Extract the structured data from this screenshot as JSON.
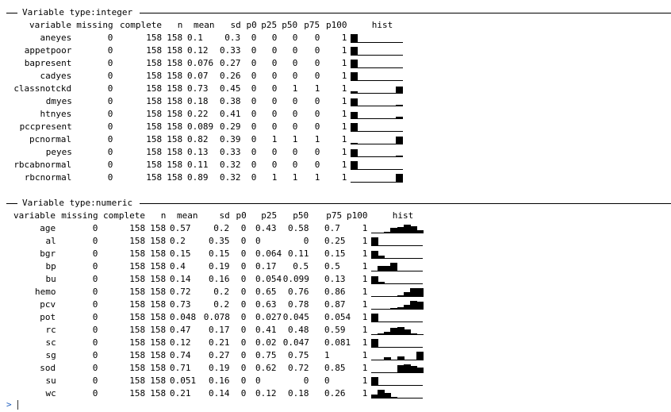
{
  "sections": [
    {
      "title": "Variable type:integer",
      "columns": [
        "variable",
        "missing",
        "complete",
        "n",
        "mean",
        "sd",
        "p0",
        "p25",
        "p50",
        "p75",
        "p100",
        "hist"
      ],
      "rows": [
        {
          "variable": "aneyes",
          "missing": "0",
          "complete": "158",
          "n": "158",
          "mean": "0.1",
          "sd": "0.3",
          "p0": "0",
          "p25": "0",
          "p50": "0",
          "p75": "0",
          "p100": "1",
          "hist": [
            0.9,
            0,
            0,
            0,
            0,
            0,
            0,
            0.1
          ]
        },
        {
          "variable": "appetpoor",
          "missing": "0",
          "complete": "158",
          "n": "158",
          "mean": "0.12",
          "sd": "0.33",
          "p0": "0",
          "p25": "0",
          "p50": "0",
          "p75": "0",
          "p100": "1",
          "hist": [
            0.88,
            0,
            0,
            0,
            0,
            0,
            0,
            0.12
          ]
        },
        {
          "variable": "bapresent",
          "missing": "0",
          "complete": "158",
          "n": "158",
          "mean": "0.076",
          "sd": "0.27",
          "p0": "0",
          "p25": "0",
          "p50": "0",
          "p75": "0",
          "p100": "1",
          "hist": [
            0.92,
            0,
            0,
            0,
            0,
            0,
            0,
            0.08
          ]
        },
        {
          "variable": "cadyes",
          "missing": "0",
          "complete": "158",
          "n": "158",
          "mean": "0.07",
          "sd": "0.26",
          "p0": "0",
          "p25": "0",
          "p50": "0",
          "p75": "0",
          "p100": "1",
          "hist": [
            0.93,
            0,
            0,
            0,
            0,
            0,
            0,
            0.07
          ]
        },
        {
          "variable": "classnotckd",
          "missing": "0",
          "complete": "158",
          "n": "158",
          "mean": "0.73",
          "sd": "0.45",
          "p0": "0",
          "p25": "0",
          "p50": "1",
          "p75": "1",
          "p100": "1",
          "hist": [
            0.27,
            0,
            0,
            0,
            0,
            0,
            0,
            0.73
          ]
        },
        {
          "variable": "dmyes",
          "missing": "0",
          "complete": "158",
          "n": "158",
          "mean": "0.18",
          "sd": "0.38",
          "p0": "0",
          "p25": "0",
          "p50": "0",
          "p75": "0",
          "p100": "1",
          "hist": [
            0.82,
            0,
            0,
            0,
            0,
            0,
            0,
            0.18
          ]
        },
        {
          "variable": "htnyes",
          "missing": "0",
          "complete": "158",
          "n": "158",
          "mean": "0.22",
          "sd": "0.41",
          "p0": "0",
          "p25": "0",
          "p50": "0",
          "p75": "0",
          "p100": "1",
          "hist": [
            0.78,
            0,
            0,
            0,
            0,
            0,
            0,
            0.22
          ]
        },
        {
          "variable": "pccpresent",
          "missing": "0",
          "complete": "158",
          "n": "158",
          "mean": "0.089",
          "sd": "0.29",
          "p0": "0",
          "p25": "0",
          "p50": "0",
          "p75": "0",
          "p100": "1",
          "hist": [
            0.91,
            0,
            0,
            0,
            0,
            0,
            0,
            0.09
          ]
        },
        {
          "variable": "pcnormal",
          "missing": "0",
          "complete": "158",
          "n": "158",
          "mean": "0.82",
          "sd": "0.39",
          "p0": "0",
          "p25": "1",
          "p50": "1",
          "p75": "1",
          "p100": "1",
          "hist": [
            0.18,
            0,
            0,
            0,
            0,
            0,
            0,
            0.82
          ]
        },
        {
          "variable": "peyes",
          "missing": "0",
          "complete": "158",
          "n": "158",
          "mean": "0.13",
          "sd": "0.33",
          "p0": "0",
          "p25": "0",
          "p50": "0",
          "p75": "0",
          "p100": "1",
          "hist": [
            0.87,
            0,
            0,
            0,
            0,
            0,
            0,
            0.13
          ]
        },
        {
          "variable": "rbcabnormal",
          "missing": "0",
          "complete": "158",
          "n": "158",
          "mean": "0.11",
          "sd": "0.32",
          "p0": "0",
          "p25": "0",
          "p50": "0",
          "p75": "0",
          "p100": "1",
          "hist": [
            0.89,
            0,
            0,
            0,
            0,
            0,
            0,
            0.11
          ]
        },
        {
          "variable": "rbcnormal",
          "missing": "0",
          "complete": "158",
          "n": "158",
          "mean": "0.89",
          "sd": "0.32",
          "p0": "0",
          "p25": "1",
          "p50": "1",
          "p75": "1",
          "p100": "1",
          "hist": [
            0.11,
            0,
            0,
            0,
            0,
            0,
            0,
            0.89
          ]
        }
      ]
    },
    {
      "title": "Variable type:numeric",
      "columns": [
        "variable",
        "missing",
        "complete",
        "n",
        "mean",
        "sd",
        "p0",
        "p25",
        "p50",
        "p75",
        "p100",
        "hist"
      ],
      "rows": [
        {
          "variable": "age",
          "missing": "0",
          "complete": "158",
          "n": "158",
          "mean": "0.57",
          "sd": "0.2",
          "p0": "0",
          "p25": "0.43",
          "p50": "0.58",
          "p75": "0.7",
          "p100": "1",
          "hist": [
            0.05,
            0.1,
            0.2,
            0.55,
            0.7,
            0.9,
            0.75,
            0.3
          ]
        },
        {
          "variable": "al",
          "missing": "0",
          "complete": "158",
          "n": "158",
          "mean": "0.2",
          "sd": "0.35",
          "p0": "0",
          "p25": "0",
          "p50": "0",
          "p75": "0.25",
          "p100": "1",
          "hist": [
            0.9,
            0,
            0,
            0,
            0,
            0,
            0,
            0
          ]
        },
        {
          "variable": "bgr",
          "missing": "0",
          "complete": "158",
          "n": "158",
          "mean": "0.15",
          "sd": "0.15",
          "p0": "0",
          "p25": "0.064",
          "p50": "0.11",
          "p75": "0.15",
          "p100": "1",
          "hist": [
            0.85,
            0.3,
            0.05,
            0.05,
            0,
            0,
            0,
            0
          ]
        },
        {
          "variable": "bp",
          "missing": "0",
          "complete": "158",
          "n": "158",
          "mean": "0.4",
          "sd": "0.19",
          "p0": "0",
          "p25": "0.17",
          "p50": "0.5",
          "p75": "0.5",
          "p100": "1",
          "hist": [
            0.05,
            0.6,
            0.6,
            0.9,
            0.05,
            0.05,
            0,
            0
          ]
        },
        {
          "variable": "bu",
          "missing": "0",
          "complete": "158",
          "n": "158",
          "mean": "0.14",
          "sd": "0.16",
          "p0": "0",
          "p25": "0.054",
          "p50": "0.099",
          "p75": "0.13",
          "p100": "1",
          "hist": [
            0.85,
            0.25,
            0.05,
            0.05,
            0,
            0,
            0,
            0
          ]
        },
        {
          "variable": "hemo",
          "missing": "0",
          "complete": "158",
          "n": "158",
          "mean": "0.72",
          "sd": "0.2",
          "p0": "0",
          "p25": "0.65",
          "p50": "0.76",
          "p75": "0.86",
          "p100": "1",
          "hist": [
            0.05,
            0,
            0.1,
            0.1,
            0.15,
            0.5,
            0.9,
            0.9
          ]
        },
        {
          "variable": "pcv",
          "missing": "0",
          "complete": "158",
          "n": "158",
          "mean": "0.73",
          "sd": "0.2",
          "p0": "0",
          "p25": "0.63",
          "p50": "0.78",
          "p75": "0.87",
          "p100": "1",
          "hist": [
            0.05,
            0,
            0.1,
            0.15,
            0.25,
            0.5,
            0.9,
            0.85
          ]
        },
        {
          "variable": "pot",
          "missing": "0",
          "complete": "158",
          "n": "158",
          "mean": "0.048",
          "sd": "0.078",
          "p0": "0",
          "p25": "0.027",
          "p50": "0.045",
          "p75": "0.054",
          "p100": "1",
          "hist": [
            0.9,
            0,
            0,
            0,
            0,
            0,
            0,
            0
          ]
        },
        {
          "variable": "rc",
          "missing": "0",
          "complete": "158",
          "n": "158",
          "mean": "0.47",
          "sd": "0.17",
          "p0": "0",
          "p25": "0.41",
          "p50": "0.48",
          "p75": "0.59",
          "p100": "1",
          "hist": [
            0.05,
            0.15,
            0.3,
            0.75,
            0.85,
            0.55,
            0.2,
            0.05
          ]
        },
        {
          "variable": "sc",
          "missing": "0",
          "complete": "158",
          "n": "158",
          "mean": "0.12",
          "sd": "0.21",
          "p0": "0",
          "p25": "0.02",
          "p50": "0.047",
          "p75": "0.081",
          "p100": "1",
          "hist": [
            0.9,
            0.05,
            0,
            0,
            0,
            0,
            0,
            0
          ]
        },
        {
          "variable": "sg",
          "missing": "0",
          "complete": "158",
          "n": "158",
          "mean": "0.74",
          "sd": "0.27",
          "p0": "0",
          "p25": "0.75",
          "p50": "0.75",
          "p75": "1",
          "p100": "1",
          "hist": [
            0.05,
            0,
            0.3,
            0,
            0.45,
            0,
            0,
            0.9
          ]
        },
        {
          "variable": "sod",
          "missing": "0",
          "complete": "158",
          "n": "158",
          "mean": "0.71",
          "sd": "0.19",
          "p0": "0",
          "p25": "0.62",
          "p50": "0.72",
          "p75": "0.85",
          "p100": "1",
          "hist": [
            0.05,
            0,
            0.05,
            0.05,
            0.8,
            0.9,
            0.75,
            0.6
          ]
        },
        {
          "variable": "su",
          "missing": "0",
          "complete": "158",
          "n": "158",
          "mean": "0.051",
          "sd": "0.16",
          "p0": "0",
          "p25": "0",
          "p50": "0",
          "p75": "0",
          "p100": "1",
          "hist": [
            0.9,
            0,
            0,
            0,
            0,
            0,
            0,
            0
          ]
        },
        {
          "variable": "wc",
          "missing": "0",
          "complete": "158",
          "n": "158",
          "mean": "0.21",
          "sd": "0.14",
          "p0": "0",
          "p25": "0.12",
          "p50": "0.18",
          "p75": "0.26",
          "p100": "1",
          "hist": [
            0.4,
            0.9,
            0.55,
            0.15,
            0.05,
            0,
            0,
            0
          ]
        }
      ]
    }
  ],
  "prompt": ">"
}
